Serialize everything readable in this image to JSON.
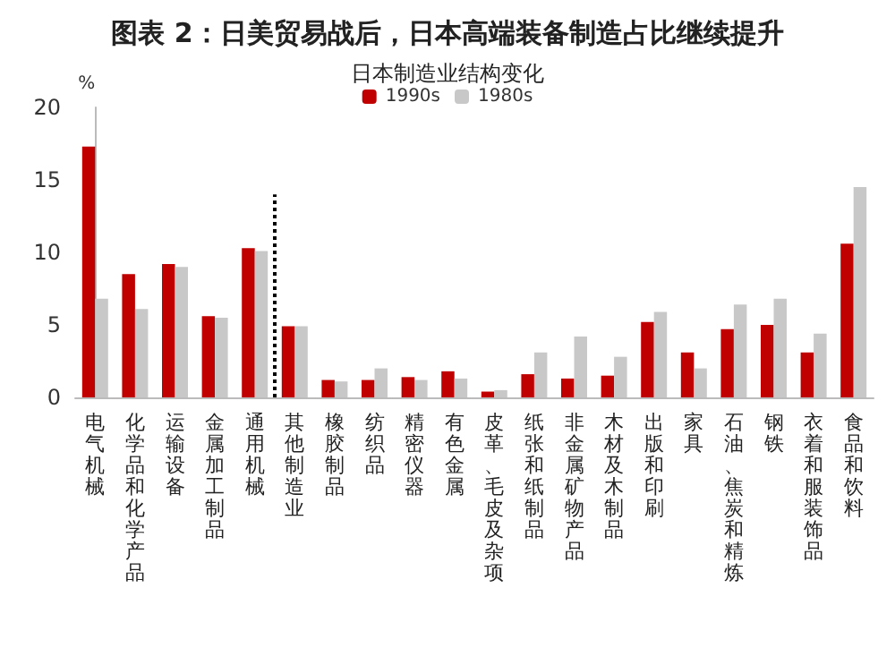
{
  "chart_data": {
    "type": "bar",
    "title": "图表 2：日美贸易战后，日本高端装备制造占比继续提升",
    "subtitle": "日本制造业结构变化",
    "ylabel": "%",
    "categories": [
      "电气机械",
      "化学品和化学产品",
      "运输设备",
      "金属加工制品",
      "通用机械",
      "其他制造业",
      "橡胶制品",
      "纺织品",
      "精密仪器",
      "有色金属",
      "皮革、毛皮及杂项",
      "纸张和纸制品",
      "非金属矿物产品",
      "木材及木制品",
      "出版和印刷",
      "家具",
      "石油、焦炭和精炼",
      "钢铁",
      "衣着和服装饰品",
      "食品和饮料"
    ],
    "series": [
      {
        "name": "1990s",
        "color": "#c00000",
        "values": [
          17.3,
          8.5,
          9.2,
          5.6,
          10.3,
          4.9,
          1.2,
          1.2,
          1.4,
          1.8,
          0.4,
          1.6,
          1.3,
          1.5,
          5.2,
          3.1,
          4.7,
          5.0,
          3.1,
          10.6
        ]
      },
      {
        "name": "1980s",
        "color": "#c8c8c8",
        "values": [
          6.8,
          6.1,
          9.0,
          5.5,
          10.1,
          4.9,
          1.1,
          2.0,
          1.2,
          1.3,
          0.5,
          3.1,
          4.2,
          2.8,
          5.9,
          2.0,
          6.4,
          6.8,
          4.4,
          14.5
        ]
      }
    ],
    "ylim": [
      0,
      20
    ],
    "yticks": [
      0,
      5,
      10,
      15,
      20
    ],
    "grid": false,
    "legend": "top"
  }
}
